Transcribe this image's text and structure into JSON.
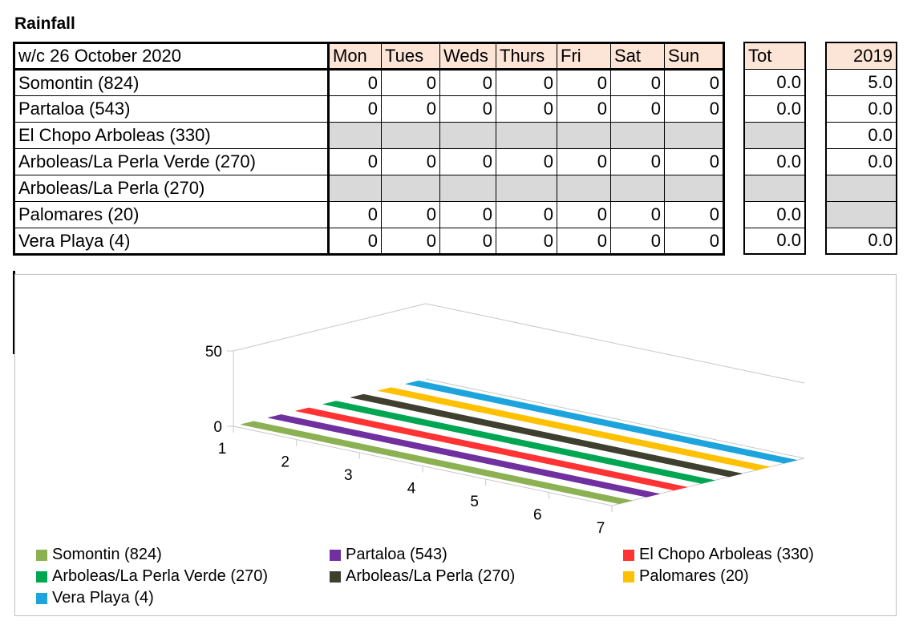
{
  "heading": "Rainfall",
  "table": {
    "week_label": "w/c 26 October 2020",
    "days": [
      "Mon",
      "Tues",
      "Weds",
      "Thurs",
      "Fri",
      "Sat",
      "Sun"
    ],
    "tot_label": "Tot",
    "prev_label": "2019",
    "rows": [
      {
        "name": "Somontin (824)",
        "days": [
          "0",
          "0",
          "0",
          "0",
          "0",
          "0",
          "0"
        ],
        "tot": "0.0",
        "prev": "5.0"
      },
      {
        "name": "Partaloa (543)",
        "days": [
          "0",
          "0",
          "0",
          "0",
          "0",
          "0",
          "0"
        ],
        "tot": "0.0",
        "prev": "0.0"
      },
      {
        "name": "El Chopo Arboleas (330)",
        "days": [
          "",
          "",
          "",
          "",
          "",
          "",
          ""
        ],
        "tot": "",
        "prev": "0.0"
      },
      {
        "name": "Arboleas/La Perla Verde (270)",
        "days": [
          "0",
          "0",
          "0",
          "0",
          "0",
          "0",
          "0"
        ],
        "tot": "0.0",
        "prev": "0.0"
      },
      {
        "name": "Arboleas/La Perla (270)",
        "days": [
          "",
          "",
          "",
          "",
          "",
          "",
          ""
        ],
        "tot": "",
        "prev": ""
      },
      {
        "name": "Palomares (20)",
        "days": [
          "0",
          "0",
          "0",
          "0",
          "0",
          "0",
          "0"
        ],
        "tot": "0.0",
        "prev": ""
      },
      {
        "name": "Vera Playa (4)",
        "days": [
          "0",
          "0",
          "0",
          "0",
          "0",
          "0",
          "0"
        ],
        "tot": "0.0",
        "prev": "0.0"
      }
    ]
  },
  "colors": {
    "header_fill": "#fce4d6",
    "missing_fill": "#d9d9d9"
  },
  "chart_data": {
    "type": "line",
    "subtype": "3d-line",
    "x": [
      1,
      2,
      3,
      4,
      5,
      6,
      7
    ],
    "y_ticks": [
      0,
      50
    ],
    "ylim": [
      0,
      50
    ],
    "legend_position": "bottom",
    "series": [
      {
        "name": "Somontin (824)",
        "color": "#8cb153",
        "values": [
          0,
          0,
          0,
          0,
          0,
          0,
          0
        ]
      },
      {
        "name": "Partaloa (543)",
        "color": "#7030a0",
        "values": [
          0,
          0,
          0,
          0,
          0,
          0,
          0
        ]
      },
      {
        "name": "El Chopo Arboleas (330)",
        "color": "#ff3333",
        "values": [
          null,
          null,
          null,
          null,
          null,
          null,
          null
        ]
      },
      {
        "name": "Arboleas/La Perla Verde (270)",
        "color": "#00a651",
        "values": [
          0,
          0,
          0,
          0,
          0,
          0,
          0
        ]
      },
      {
        "name": "Arboleas/La Perla (270)",
        "color": "#3f3f2f",
        "values": [
          null,
          null,
          null,
          null,
          null,
          null,
          null
        ]
      },
      {
        "name": "Palomares (20)",
        "color": "#ffc000",
        "values": [
          0,
          0,
          0,
          0,
          0,
          0,
          0
        ]
      },
      {
        "name": "Vera Playa (4)",
        "color": "#1ea4dc",
        "values": [
          0,
          0,
          0,
          0,
          0,
          0,
          0
        ]
      }
    ]
  }
}
